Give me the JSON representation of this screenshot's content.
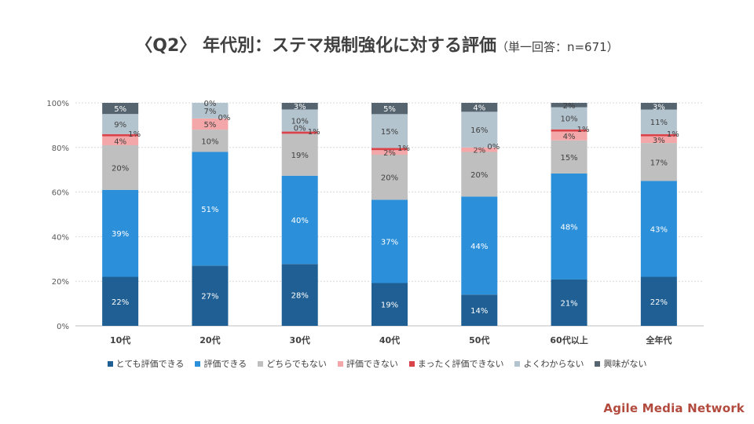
{
  "header": {
    "title": "〈Q2〉 年代別：ステマ規制強化に対する評価",
    "subtitle": "（単一回答：n=671）"
  },
  "brand": "Agile Media Network",
  "chart_data": {
    "type": "bar",
    "stacked": "percent",
    "categories": [
      "10代",
      "20代",
      "30代",
      "40代",
      "50代",
      "60代以上",
      "全年代"
    ],
    "y_ticks": [
      "0%",
      "20%",
      "40%",
      "60%",
      "80%",
      "100%"
    ],
    "ylim": [
      0,
      100
    ],
    "grid": true,
    "legend_position": "bottom",
    "series": [
      {
        "name": "とても評価できる",
        "color": "#1f5f93",
        "values": [
          22,
          27,
          28,
          19,
          14,
          21,
          22
        ],
        "labels": [
          "22%",
          "27%",
          "28%",
          "19%",
          "14%",
          "21%",
          "22%"
        ]
      },
      {
        "name": "評価できる",
        "color": "#2b8fd9",
        "values": [
          39,
          51,
          40,
          37,
          44,
          48,
          43
        ],
        "labels": [
          "39%",
          "51%",
          "40%",
          "37%",
          "44%",
          "48%",
          "43%"
        ]
      },
      {
        "name": "どちらでもない",
        "color": "#bfbfbf",
        "values": [
          20,
          10,
          19,
          20,
          20,
          15,
          17
        ],
        "labels": [
          "20%",
          "10%",
          "19%",
          "20%",
          "20%",
          "15%",
          "17%"
        ]
      },
      {
        "name": "評価できない",
        "color": "#f4a7a8",
        "values": [
          4,
          5,
          0,
          2,
          2,
          4,
          3
        ],
        "labels": [
          "4%",
          "5%",
          "0%",
          "2%",
          "2%",
          "4%",
          "3%"
        ]
      },
      {
        "name": "まったく評価できない",
        "color": "#d9434a",
        "values": [
          1,
          0,
          1,
          1,
          0,
          1,
          1
        ],
        "labels": [
          "1%",
          "0%",
          "1%",
          "1%",
          "0%",
          "1%",
          "1%"
        ]
      },
      {
        "name": "よくわからない",
        "color": "#b4c4cf",
        "values": [
          9,
          7,
          10,
          15,
          16,
          10,
          11
        ],
        "labels": [
          "9%",
          "7%",
          "10%",
          "15%",
          "16%",
          "10%",
          "11%"
        ]
      },
      {
        "name": "興味がない",
        "color": "#55646f",
        "values": [
          5,
          0,
          3,
          5,
          4,
          2,
          3
        ],
        "labels": [
          "5%",
          "0%",
          "3%",
          "5%",
          "4%",
          "2%",
          "3%"
        ]
      }
    ]
  }
}
